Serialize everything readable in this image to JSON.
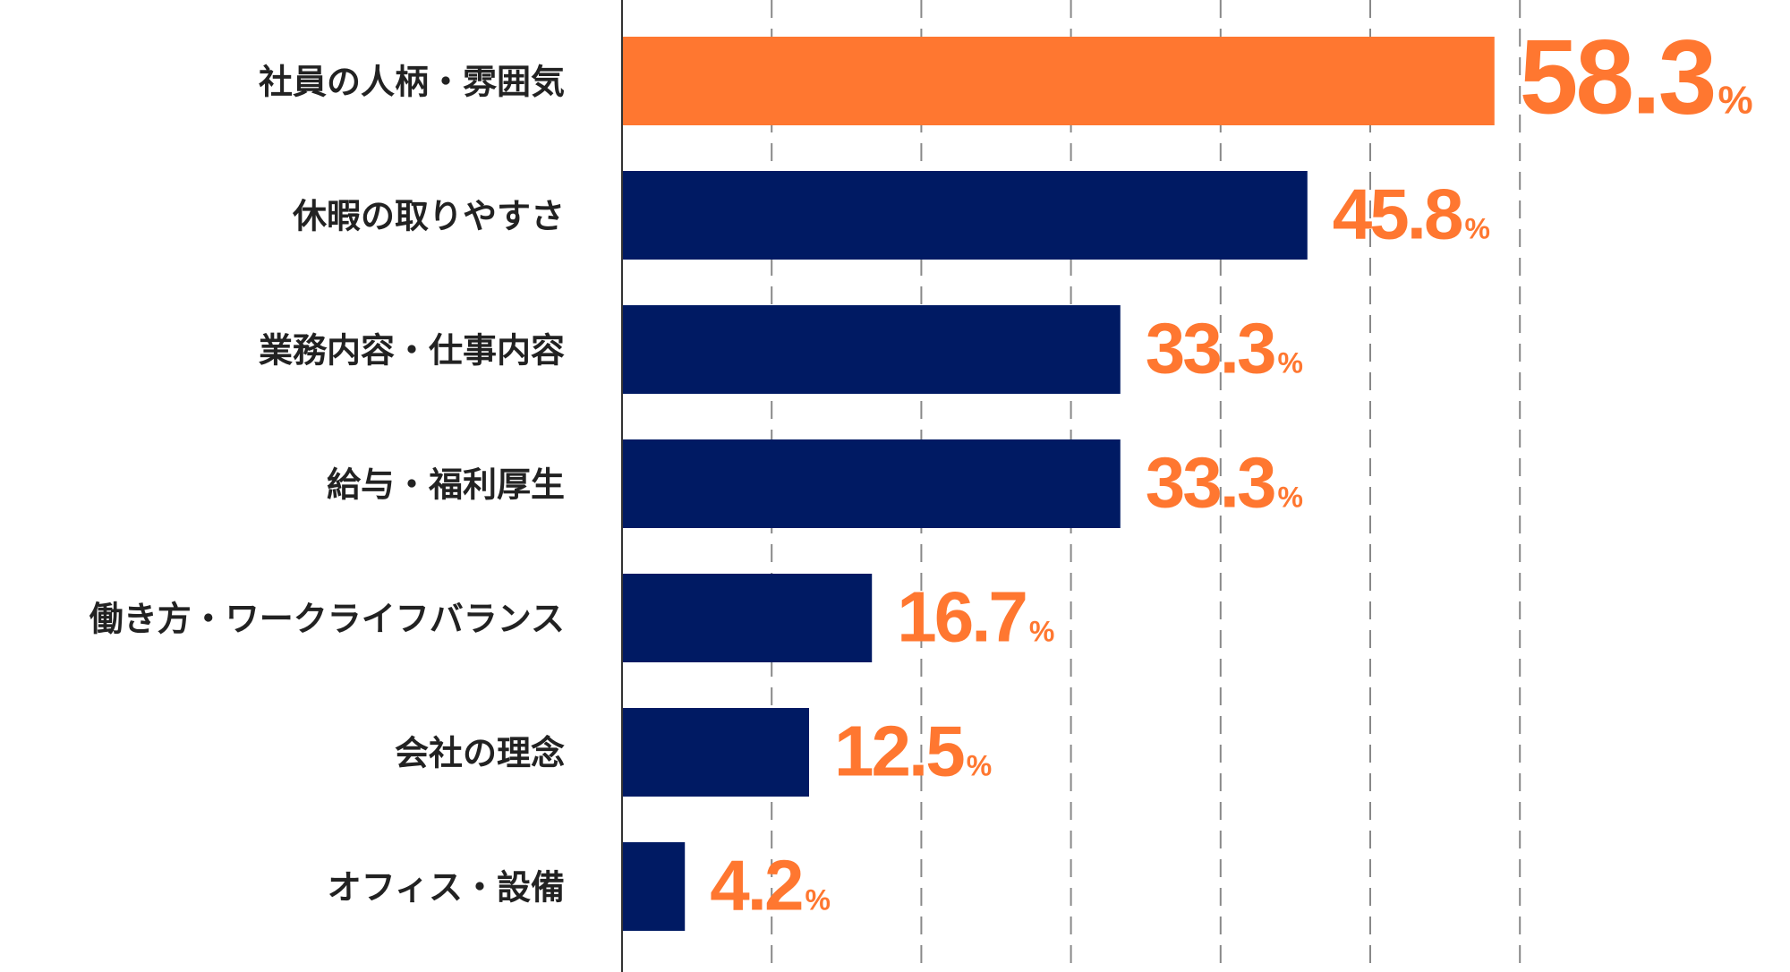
{
  "chart_data": {
    "type": "bar",
    "orientation": "horizontal",
    "title": "",
    "xlabel": "",
    "ylabel": "",
    "xlim": [
      0,
      60
    ],
    "grid": true,
    "unit": "%",
    "categories": [
      "社員の人柄・雰囲気",
      "休暇の取りやすさ",
      "業務内容・仕事内容",
      "給与・福利厚生",
      "働き方・ワークライフバランス",
      "会社の理念",
      "オフィス・設備"
    ],
    "values": [
      58.3,
      45.8,
      33.3,
      33.3,
      16.7,
      12.5,
      4.2
    ],
    "value_labels": [
      "58.3",
      "45.8",
      "33.3",
      "33.3",
      "16.7",
      "12.5",
      "4.2"
    ],
    "highlight_index": 0,
    "colors": {
      "highlight": "#ff7730",
      "default": "#001a63",
      "value_text": "#ff7730",
      "grid": "#888888",
      "axis": "#333333"
    }
  }
}
